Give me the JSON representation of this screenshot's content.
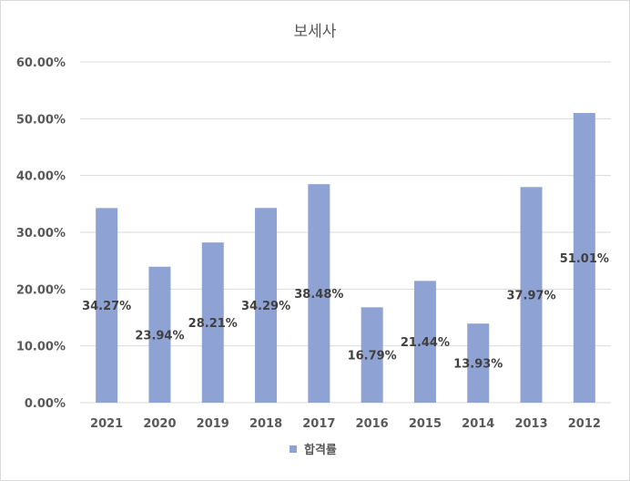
{
  "chart_data": {
    "type": "bar",
    "title": "보세사",
    "categories": [
      "2021",
      "2020",
      "2019",
      "2018",
      "2017",
      "2016",
      "2015",
      "2014",
      "2013",
      "2012"
    ],
    "series": [
      {
        "name": "합격률",
        "color": "#8FA2D4",
        "values": [
          34.27,
          23.94,
          28.21,
          34.29,
          38.48,
          16.79,
          21.44,
          13.93,
          37.97,
          51.01
        ]
      }
    ],
    "data_labels": [
      "34.27%",
      "23.94%",
      "28.21%",
      "34.29%",
      "38.48%",
      "16.79%",
      "21.44%",
      "13.93%",
      "37.97%",
      "51.01%"
    ],
    "y_ticks": [
      "0.00%",
      "10.00%",
      "20.00%",
      "30.00%",
      "40.00%",
      "50.00%",
      "60.00%"
    ],
    "ylim": [
      0,
      60
    ],
    "grid": true,
    "legend_position": "bottom",
    "colors": {
      "bar": "#8FA2D4",
      "gridline": "#D9D9D9",
      "text": "#595959"
    }
  }
}
